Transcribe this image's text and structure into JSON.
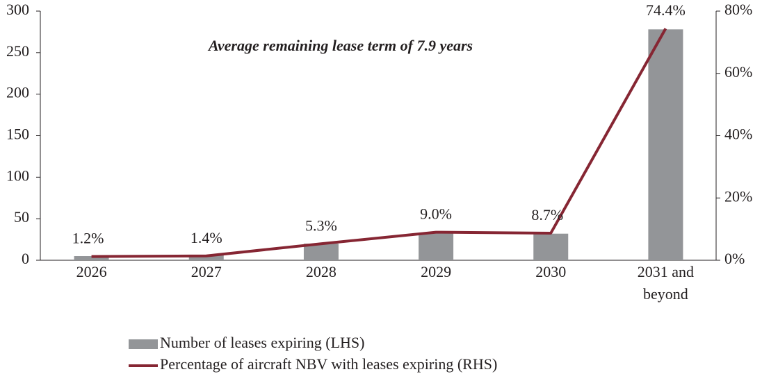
{
  "chart_data": {
    "type": "bar",
    "annotation": "Average remaining lease term of 7.9 years",
    "categories": [
      "2026",
      "2027",
      "2028",
      "2029",
      "2030",
      "2031 and beyond"
    ],
    "series": [
      {
        "name": "Number of leases expiring (LHS)",
        "type": "bar",
        "color": "#939598",
        "values": [
          5,
          6,
          20,
          33,
          32,
          278
        ]
      },
      {
        "name": "Percentage of aircraft NBV with leases expiring (RHS)",
        "type": "line",
        "axis": "y2",
        "color": "#862633",
        "values": [
          1.2,
          1.4,
          5.3,
          9.0,
          8.7,
          74.4
        ],
        "value_labels": [
          "1.2%",
          "1.4%",
          "5.3%",
          "9.0%",
          "8.7%",
          "74.4%"
        ]
      }
    ],
    "ylim": [
      0,
      300
    ],
    "yticks": [
      0,
      50,
      100,
      150,
      200,
      250,
      300
    ],
    "y2lim": [
      0,
      80
    ],
    "y2ticks": [
      {
        "value": 0,
        "label": "0%"
      },
      {
        "value": 20,
        "label": "20%"
      },
      {
        "value": 40,
        "label": "40%"
      },
      {
        "value": 60,
        "label": "60%"
      },
      {
        "value": 80,
        "label": "80%"
      }
    ],
    "grid": false,
    "legend": "bottom"
  }
}
